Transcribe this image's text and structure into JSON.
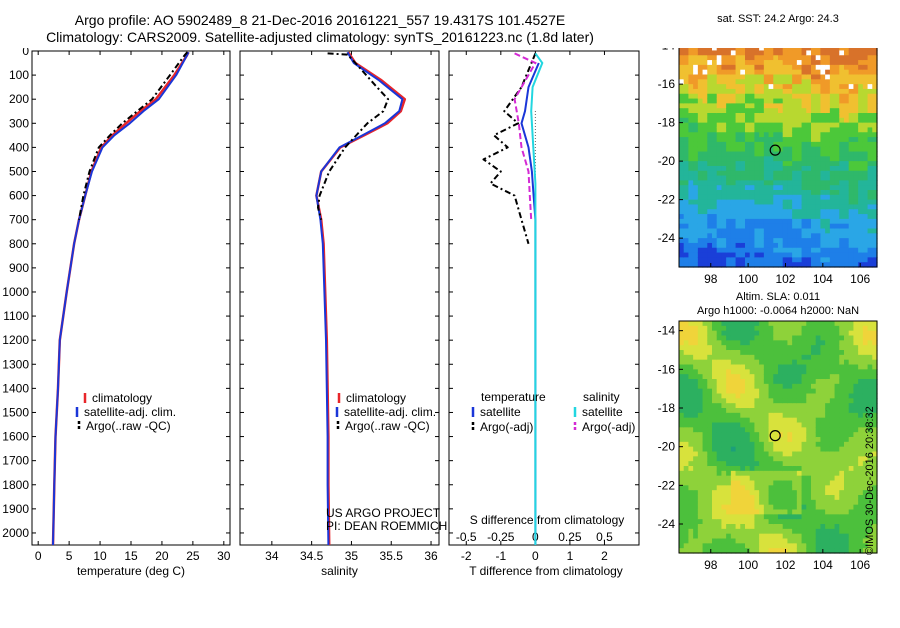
{
  "header": {
    "line1": "Argo profile: AO 5902489_8 21-Dec-2016 20161221_557 19.4317S 101.4527E",
    "line2": "Climatology: CARS2009. Satellite-adjusted climatology: synTS_20161223.nc (1.8d later)"
  },
  "colors": {
    "climatology": "#e8262a",
    "satellite": "#1a36d8",
    "argo": "#000000",
    "sat_salinity": "#22d6e0",
    "argo_salinity_adj": "#d42ad4"
  },
  "chart_data": [
    {
      "type": "line",
      "id": "temperature",
      "xlabel": "temperature (deg C)",
      "ylabel": "",
      "xlim": [
        -1,
        31
      ],
      "ylim": [
        2050,
        0
      ],
      "xticks": [
        0,
        5,
        10,
        15,
        20,
        25,
        30
      ],
      "yticks": [
        0,
        100,
        200,
        300,
        400,
        500,
        600,
        700,
        800,
        900,
        1000,
        1100,
        1200,
        1300,
        1400,
        1500,
        1600,
        1700,
        1800,
        1900,
        2000
      ],
      "legend": [
        "climatology",
        "satellite-adj. clim.",
        "Argo(..raw -QC)"
      ],
      "series": [
        {
          "name": "climatology",
          "x": [
            24.3,
            24.0,
            22.0,
            19.0,
            16.5,
            14.2,
            12.0,
            10.2,
            8.6,
            7.6,
            6.6,
            5.8,
            4.6,
            3.5,
            3.2,
            2.8,
            2.6,
            2.4
          ],
          "y": [
            5,
            20,
            100,
            200,
            250,
            300,
            350,
            400,
            500,
            600,
            700,
            800,
            1000,
            1200,
            1400,
            1600,
            1800,
            2050
          ]
        },
        {
          "name": "satellite-adj. clim.",
          "x": [
            24.3,
            24.0,
            22.3,
            19.5,
            17.0,
            14.8,
            12.3,
            10.4,
            8.7,
            7.6,
            6.6,
            5.8,
            4.6,
            3.5,
            3.2,
            2.8,
            2.6,
            2.4
          ],
          "y": [
            5,
            20,
            100,
            200,
            250,
            300,
            350,
            400,
            500,
            600,
            700,
            800,
            1000,
            1200,
            1400,
            1600,
            1800,
            2050
          ]
        },
        {
          "name": "Argo(..raw -QC)",
          "x": [
            24.1,
            23.6,
            21.3,
            18.4,
            16.0,
            13.6,
            11.6,
            9.8,
            8.3,
            7.3,
            6.6
          ],
          "y": [
            5,
            20,
            100,
            200,
            250,
            300,
            350,
            400,
            500,
            600,
            700
          ]
        }
      ]
    },
    {
      "type": "line",
      "id": "salinity",
      "xlabel": "salinity",
      "ylabel": "",
      "xlim": [
        33.6,
        36.1
      ],
      "ylim": [
        2050,
        0
      ],
      "xticks": [
        34,
        34.5,
        35,
        35.5,
        36
      ],
      "legend": [
        "climatology",
        "satellite-adj. clim.",
        "Argo(..raw -QC)"
      ],
      "annotation": [
        "US ARGO PROJECT",
        "PI: DEAN ROEMMICH"
      ],
      "series": [
        {
          "name": "climatology",
          "x": [
            34.96,
            35.05,
            35.37,
            35.67,
            35.62,
            35.45,
            35.16,
            34.86,
            34.62,
            34.56,
            34.62,
            34.65,
            34.67,
            34.69,
            34.7,
            34.71,
            34.71,
            34.72
          ],
          "y": [
            5,
            50,
            120,
            200,
            250,
            300,
            350,
            400,
            500,
            600,
            700,
            800,
            1000,
            1200,
            1400,
            1600,
            1800,
            2050
          ]
        },
        {
          "name": "satellite-adj. clim.",
          "x": [
            34.95,
            35.03,
            35.34,
            35.64,
            35.6,
            35.42,
            35.14,
            34.85,
            34.62,
            34.56,
            34.61,
            34.64,
            34.66,
            34.68,
            34.69,
            34.7,
            34.7,
            34.71
          ],
          "y": [
            5,
            50,
            120,
            200,
            250,
            300,
            350,
            400,
            500,
            600,
            700,
            800,
            1000,
            1200,
            1400,
            1600,
            1800,
            2050
          ]
        },
        {
          "name": "Argo(..raw -QC)",
          "x": [
            34.7,
            34.95,
            35.05,
            35.32,
            35.46,
            35.4,
            35.2,
            34.92,
            34.72,
            34.6,
            34.58,
            34.62
          ],
          "y": [
            10,
            15,
            50,
            150,
            200,
            250,
            300,
            400,
            500,
            600,
            650,
            700
          ]
        }
      ]
    },
    {
      "type": "line",
      "id": "difference",
      "xlabel": "T difference from climatology",
      "top_label": "S difference from climatology",
      "ylabel": "",
      "xlim": [
        -2.5,
        3
      ],
      "ylim": [
        2050,
        0
      ],
      "xticks": [
        -2,
        -1,
        0,
        1,
        2
      ],
      "sticks": [
        -0.5,
        -0.25,
        0,
        0.25,
        0.5
      ],
      "legend_groups": [
        {
          "title": "temperature",
          "items": [
            "satellite",
            "Argo(-adj)"
          ]
        },
        {
          "title": "salinity",
          "items": [
            "satellite",
            "Argo(-adj)"
          ]
        }
      ],
      "series": [
        {
          "name": "temperature satellite",
          "x": [
            0.1,
            -0.2,
            -0.3,
            -0.4,
            -0.3,
            -0.2,
            -0.1,
            -0.05,
            0.0,
            0.0,
            0.0,
            0.0
          ],
          "y": [
            50,
            150,
            250,
            300,
            350,
            400,
            500,
            600,
            700,
            800,
            900,
            2050
          ]
        },
        {
          "name": "temperature Argo(-adj)",
          "x": [
            0.0,
            -0.4,
            -0.9,
            -0.5,
            -1.2,
            -0.8,
            -1.5,
            -1.0,
            -1.3,
            -0.6,
            -0.4,
            -0.2
          ],
          "y": [
            10,
            150,
            250,
            300,
            350,
            400,
            450,
            500,
            550,
            600,
            700,
            800
          ]
        },
        {
          "name": "salinity satellite",
          "x": [
            0.0,
            0.05,
            -0.02,
            -0.03,
            -0.02,
            -0.01,
            0.0,
            0.0,
            0.0,
            0.0
          ],
          "y": [
            10,
            50,
            150,
            250,
            350,
            450,
            550,
            700,
            900,
            2050
          ]
        },
        {
          "name": "salinity Argo(-adj)",
          "x": [
            -0.15,
            0.0,
            -0.15,
            -0.12,
            -0.1,
            -0.05,
            -0.04,
            -0.03
          ],
          "y": [
            10,
            50,
            200,
            300,
            400,
            500,
            600,
            700
          ]
        }
      ]
    },
    {
      "type": "heatmap",
      "id": "sst",
      "title": "sat. SST: 24.2 Argo: 24.3",
      "xlim": [
        96.3,
        106.9
      ],
      "ylim": [
        -25.5,
        -13.5
      ],
      "xticks": [
        98,
        100,
        102,
        104,
        106
      ],
      "yticks": [
        -14,
        -16,
        -18,
        -20,
        -22,
        -24
      ],
      "marker": {
        "lon": 101.45,
        "lat": -19.43
      }
    },
    {
      "type": "heatmap",
      "id": "sla",
      "title": "Altim. SLA: 0.011",
      "subtitle": "Argo h1000: -0.0064 h2000: NaN",
      "xlim": [
        96.3,
        106.9
      ],
      "ylim": [
        -25.5,
        -13.5
      ],
      "xticks": [
        98,
        100,
        102,
        104,
        106
      ],
      "yticks": [
        -14,
        -16,
        -18,
        -20,
        -22,
        -24
      ],
      "marker": {
        "lon": 101.45,
        "lat": -19.43
      }
    }
  ],
  "credit": "©IMOS 30-Dec-2016 20:38:32"
}
